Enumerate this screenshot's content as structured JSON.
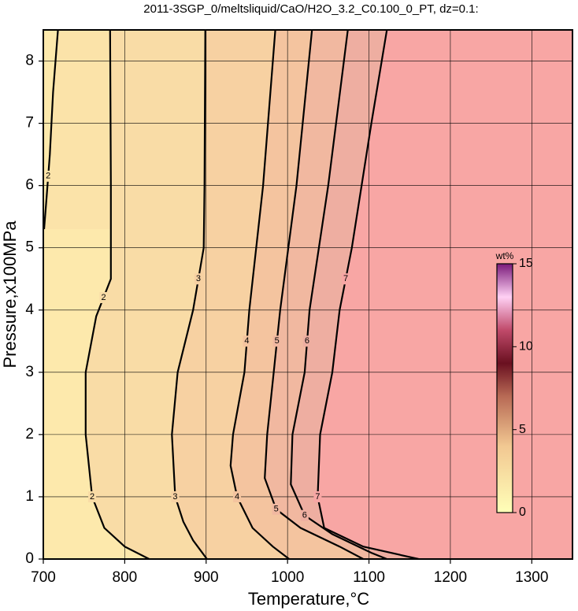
{
  "chart_data": {
    "type": "contour",
    "title": "2011-3SGP_0/meltsliquid/CaO/H2O_3.2_C0.100_0_PT, dz=0.1:",
    "x_label": "Temperature,°C",
    "y_label": "Pressure,x100MPa",
    "xlim": [
      700,
      1350
    ],
    "ylim": [
      0,
      8.5
    ],
    "xticks": [
      700,
      800,
      900,
      1000,
      1100,
      1200,
      1300
    ],
    "yticks": [
      0,
      1,
      2,
      3,
      4,
      5,
      6,
      7,
      8
    ],
    "grid": true,
    "background_color": "#fde9ac",
    "contours": [
      {
        "level": 2,
        "color": "#000000",
        "fill": "#fbe3a9",
        "x": [
          718,
          712,
          708,
          704,
          701
        ],
        "y": [
          8.5,
          7.5,
          6.5,
          5.8,
          5.3
        ]
      },
      {
        "level": 2,
        "color": "#000000",
        "fill": "#f9dca6",
        "x": [
          782,
          783,
          783,
          765,
          752,
          752,
          760,
          775,
          800,
          830
        ],
        "y": [
          8.5,
          6,
          4.5,
          3.9,
          3,
          2,
          1,
          0.5,
          0.2,
          0
        ]
      },
      {
        "level": 3,
        "color": "#000000",
        "fill": "#f7d1a2",
        "x": [
          899,
          898,
          897,
          884,
          865,
          858,
          862,
          872,
          884,
          901
        ],
        "y": [
          8.5,
          6,
          5,
          4,
          3,
          2,
          1,
          0.6,
          0.3,
          0
        ]
      },
      {
        "level": 4,
        "color": "#000000",
        "fill": "#f4c49f",
        "x": [
          985,
          970,
          953,
          947,
          940,
          933,
          930,
          938,
          957,
          982,
          1002
        ],
        "y": [
          8.5,
          6,
          4,
          3,
          2.5,
          2,
          1.5,
          1,
          0.5,
          0.2,
          0
        ]
      },
      {
        "level": 5,
        "color": "#000000",
        "fill": "#f1b8a0",
        "x": [
          1030,
          1011,
          991,
          983,
          975,
          972,
          986,
          1016,
          1064,
          1093
        ],
        "y": [
          8.5,
          6,
          4,
          3,
          2,
          1.3,
          0.8,
          0.5,
          0.2,
          0
        ]
      },
      {
        "level": 6,
        "color": "#000000",
        "fill": "#eeaea1",
        "x": [
          1074,
          1050,
          1027,
          1021,
          1006,
          1004,
          1021,
          1055,
          1103,
          1122
        ],
        "y": [
          8.5,
          6,
          4,
          3,
          2,
          1.2,
          0.7,
          0.4,
          0.1,
          0
        ]
      },
      {
        "level": 7,
        "color": "#000000",
        "fill": "#f8a6a4",
        "x": [
          1122,
          1103,
          1079,
          1064,
          1055,
          1040,
          1037,
          1045,
          1093,
          1161
        ],
        "y": [
          8.5,
          7,
          5,
          4,
          3,
          2,
          1,
          0.5,
          0.2,
          0
        ]
      }
    ],
    "colorbar": {
      "label": "wt%",
      "lim": [
        0,
        15
      ],
      "ticks": [
        0,
        5,
        10,
        15
      ],
      "colors": [
        {
          "value": 0,
          "color": "#ffffb8"
        },
        {
          "value": 4,
          "color": "#f2c892"
        },
        {
          "value": 7,
          "color": "#b86a55"
        },
        {
          "value": 9,
          "color": "#6a1020"
        },
        {
          "value": 11,
          "color": "#c04a6a"
        },
        {
          "value": 13,
          "color": "#ffd0f4"
        },
        {
          "value": 15,
          "color": "#7a1a7a"
        }
      ]
    }
  }
}
